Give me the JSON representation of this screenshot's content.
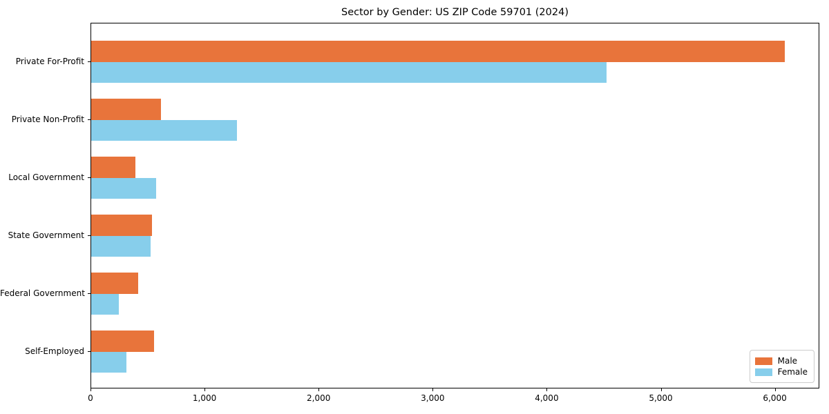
{
  "title": "Sector by Gender: US ZIP Code 59701 (2024)",
  "chart_data": {
    "type": "bar",
    "orientation": "horizontal",
    "title": "Sector by Gender: US ZIP Code 59701 (2024)",
    "xlabel": "",
    "ylabel": "",
    "categories": [
      "Private For-Profit",
      "Private Non-Profit",
      "Local Government",
      "State Government",
      "Federal Government",
      "Self-Employed"
    ],
    "series": [
      {
        "name": "Male",
        "color": "#E8743B",
        "values": [
          6080,
          610,
          390,
          530,
          410,
          550
        ]
      },
      {
        "name": "Female",
        "color": "#87CEEB",
        "values": [
          4520,
          1280,
          570,
          520,
          240,
          310
        ]
      }
    ],
    "xlim": [
      0,
      6390
    ],
    "x_ticks": [
      {
        "value": 0,
        "label": "0"
      },
      {
        "value": 1000,
        "label": "1,000"
      },
      {
        "value": 2000,
        "label": "2,000"
      },
      {
        "value": 3000,
        "label": "3,000"
      },
      {
        "value": 4000,
        "label": "4,000"
      },
      {
        "value": 5000,
        "label": "5,000"
      },
      {
        "value": 6000,
        "label": "6,000"
      }
    ],
    "grid": false,
    "legend_position": "lower right",
    "axis_color": "#000000",
    "legend_border_color": "#cccccc"
  }
}
